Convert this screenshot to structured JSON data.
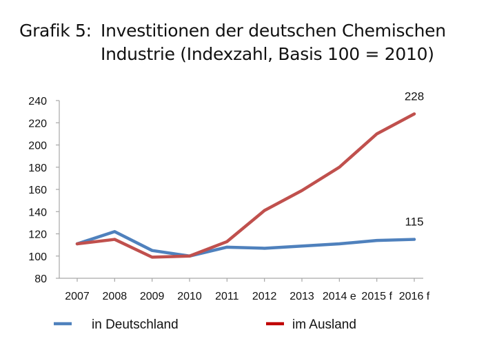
{
  "title": {
    "prefix": "Grafik 5:",
    "line1": "Investitionen der deutschen Chemischen",
    "line2": "Industrie (Indexzahl, Basis 100 = 2010)"
  },
  "chart_data": {
    "type": "line",
    "title": "Investitionen der deutschen Chemischen Industrie (Indexzahl, Basis 100 = 2010)",
    "categories": [
      "2007",
      "2008",
      "2009",
      "2010",
      "2011",
      "2012",
      "2013",
      "2014 e",
      "2015 f",
      "2016 f"
    ],
    "yticks": [
      80,
      100,
      120,
      140,
      160,
      180,
      200,
      220,
      240
    ],
    "ylim": [
      80,
      240
    ],
    "xlabel": "",
    "ylabel": "",
    "grid": false,
    "legend_position": "bottom",
    "series": [
      {
        "name": "in Deutschland",
        "color": "#4f81bd",
        "values": [
          111,
          122,
          105,
          100,
          108,
          107,
          109,
          111,
          114,
          115
        ],
        "end_label": "115"
      },
      {
        "name": "im Ausland",
        "color": "#c0504d",
        "values": [
          111,
          115,
          99,
          100,
          113,
          141,
          159,
          180,
          210,
          228
        ],
        "end_label": "228"
      }
    ],
    "legend_colors": [
      "#4f81bd",
      "#c00000"
    ]
  }
}
